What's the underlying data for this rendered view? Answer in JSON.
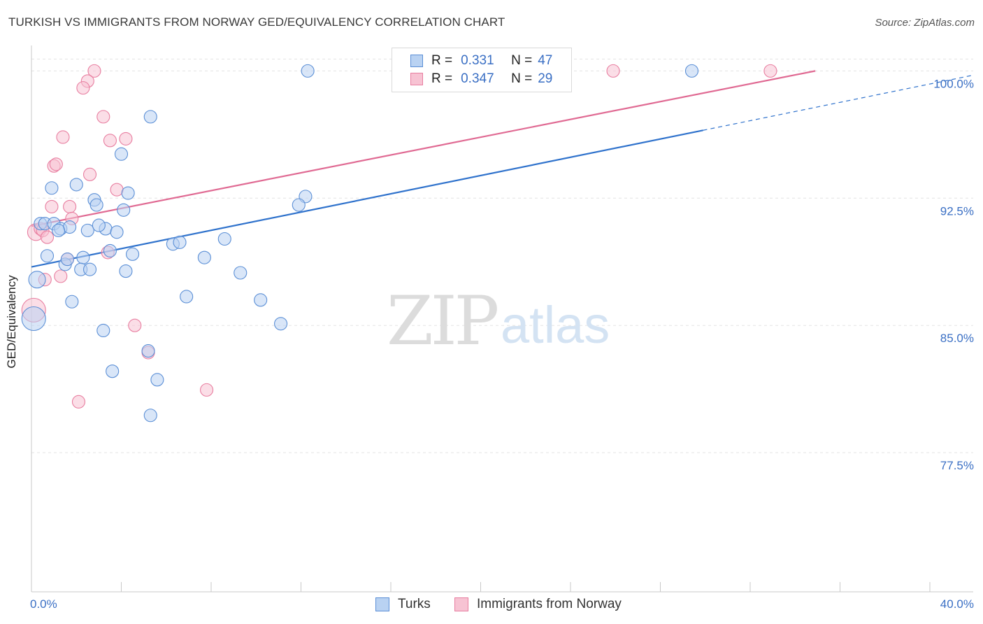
{
  "title": "TURKISH VS IMMIGRANTS FROM NORWAY GED/EQUIVALENCY CORRELATION CHART",
  "source": "Source: ZipAtlas.com",
  "watermark": {
    "zip": "ZIP",
    "atlas": "atlas"
  },
  "legend": {
    "r_label": "R =",
    "n_label": "N =",
    "rows": [
      {
        "r": "0.331",
        "n": "47",
        "color": "#5b8fd6",
        "fill": "#b9d2f2"
      },
      {
        "r": "0.347",
        "n": "29",
        "color": "#e87ea0",
        "fill": "#f7c3d3"
      }
    ]
  },
  "colors": {
    "turks": "#5b8fd6",
    "turks_fill": "#b9d2f2",
    "turks_line": "#2f72cc",
    "norway": "#e87ea0",
    "norway_fill": "#f7c3d3",
    "norway_line": "#e06a93",
    "tick_text": "#3a6fc4"
  },
  "chart_data": {
    "type": "scatter",
    "title": "TURKISH VS IMMIGRANTS FROM NORWAY GED/EQUIVALENCY CORRELATION CHART",
    "xlabel": "",
    "ylabel": "GED/Equivalency",
    "xlim": [
      0,
      40
    ],
    "ylim": [
      69.3,
      101.5
    ],
    "x_tick_labels": [
      {
        "value": 0,
        "label": "0.0%"
      },
      {
        "value": 40,
        "label": "40.0%"
      }
    ],
    "y_ticks": [
      {
        "value": 100.0,
        "label": "100.0%"
      },
      {
        "value": 92.5,
        "label": "92.5%"
      },
      {
        "value": 85.0,
        "label": "85.0%"
      },
      {
        "value": 77.5,
        "label": "77.5%"
      }
    ],
    "series": [
      {
        "name": "Turks",
        "points": [
          [
            12.3,
            100.0
          ],
          [
            29.4,
            100.0
          ],
          [
            5.3,
            97.3
          ],
          [
            4.0,
            95.1
          ],
          [
            0.9,
            93.1
          ],
          [
            2.0,
            93.3
          ],
          [
            2.8,
            92.4
          ],
          [
            4.3,
            92.8
          ],
          [
            2.9,
            92.1
          ],
          [
            12.2,
            92.6
          ],
          [
            11.9,
            92.1
          ],
          [
            4.1,
            91.8
          ],
          [
            0.4,
            91.0
          ],
          [
            0.6,
            91.0
          ],
          [
            1.0,
            91.0
          ],
          [
            1.3,
            90.7
          ],
          [
            1.7,
            90.8
          ],
          [
            2.5,
            90.6
          ],
          [
            3.3,
            90.7
          ],
          [
            3.8,
            90.5
          ],
          [
            3.0,
            90.9
          ],
          [
            8.6,
            90.1
          ],
          [
            6.3,
            89.8
          ],
          [
            6.6,
            89.9
          ],
          [
            0.7,
            89.1
          ],
          [
            1.5,
            88.6
          ],
          [
            1.6,
            88.9
          ],
          [
            2.3,
            89.0
          ],
          [
            3.5,
            89.4
          ],
          [
            4.5,
            89.2
          ],
          [
            7.7,
            89.0
          ],
          [
            2.2,
            88.3
          ],
          [
            2.6,
            88.3
          ],
          [
            4.2,
            88.2
          ],
          [
            9.3,
            88.1
          ],
          [
            0.25,
            87.7
          ],
          [
            1.8,
            86.4
          ],
          [
            6.9,
            86.7
          ],
          [
            10.2,
            86.5
          ],
          [
            0.1,
            85.4
          ],
          [
            11.1,
            85.1
          ],
          [
            3.2,
            84.7
          ],
          [
            5.2,
            83.5
          ],
          [
            3.6,
            82.3
          ],
          [
            5.6,
            81.8
          ],
          [
            5.3,
            79.7
          ],
          [
            1.2,
            90.6
          ]
        ],
        "r": 0.331,
        "n": 47,
        "trend": {
          "x": [
            0.0,
            29.9
          ],
          "y": [
            88.45,
            96.5
          ],
          "dash_to": [
            42.0,
            99.75
          ]
        }
      },
      {
        "name": "Immigrants from Norway",
        "points": [
          [
            2.8,
            100.0
          ],
          [
            25.9,
            100.0
          ],
          [
            32.9,
            100.0
          ],
          [
            2.5,
            99.4
          ],
          [
            2.3,
            99.0
          ],
          [
            3.2,
            97.3
          ],
          [
            1.4,
            96.1
          ],
          [
            3.5,
            95.9
          ],
          [
            4.2,
            96.0
          ],
          [
            1.0,
            94.4
          ],
          [
            1.1,
            94.5
          ],
          [
            2.6,
            93.9
          ],
          [
            3.8,
            93.0
          ],
          [
            0.9,
            92.0
          ],
          [
            1.7,
            92.0
          ],
          [
            1.8,
            91.3
          ],
          [
            0.2,
            90.5
          ],
          [
            0.4,
            90.7
          ],
          [
            0.5,
            90.6
          ],
          [
            0.7,
            90.2
          ],
          [
            1.6,
            88.9
          ],
          [
            3.4,
            89.3
          ],
          [
            1.3,
            87.9
          ],
          [
            0.6,
            87.7
          ],
          [
            4.6,
            85.0
          ],
          [
            5.2,
            83.4
          ],
          [
            0.1,
            85.9
          ],
          [
            2.1,
            80.5
          ],
          [
            7.8,
            81.2
          ]
        ],
        "r": 0.347,
        "n": 29,
        "trend": {
          "x": [
            0.0,
            34.9
          ],
          "y": [
            90.85,
            100.0
          ]
        }
      }
    ],
    "legend_position": "top-center",
    "grid": true
  },
  "bottom_legend": [
    {
      "label": "Turks"
    },
    {
      "label": "Immigrants from Norway"
    }
  ]
}
